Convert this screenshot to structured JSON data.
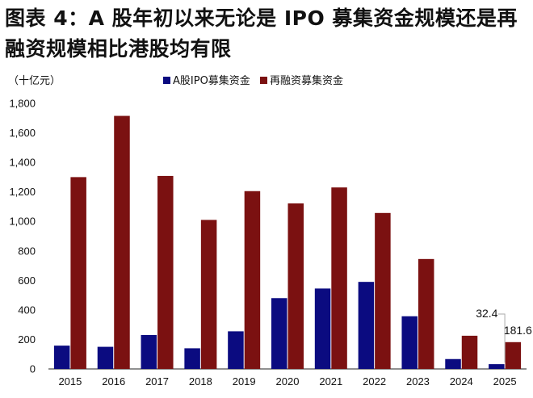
{
  "title": "图表 4：A 股年初以来无论是 IPO 募集资金规模还是再融资规模相比港股均有限",
  "chart_data": {
    "type": "bar",
    "unit_label": "（十亿元）",
    "categories": [
      "2015",
      "2016",
      "2017",
      "2018",
      "2019",
      "2020",
      "2021",
      "2022",
      "2023",
      "2024",
      "2025"
    ],
    "series": [
      {
        "name": "A股IPO募集资金",
        "color": "#0b0b80",
        "values": [
          158,
          150,
          230,
          140,
          255,
          480,
          545,
          590,
          357,
          67,
          32.4
        ]
      },
      {
        "name": "再融资募集资金",
        "color": "#7b1111",
        "values": [
          1300,
          1715,
          1308,
          1010,
          1205,
          1122,
          1230,
          1057,
          745,
          225,
          181.6
        ]
      }
    ],
    "ylim": [
      0,
      1800
    ],
    "yticks": [
      0,
      200,
      400,
      600,
      800,
      1000,
      1200,
      1400,
      1600,
      1800
    ],
    "ytick_labels": [
      "0",
      "200",
      "400",
      "600",
      "800",
      "1,000",
      "1,200",
      "1,400",
      "1,600",
      "1,800"
    ],
    "annotations": [
      {
        "text": "32.4",
        "category": "2025",
        "series": 0
      },
      {
        "text": "181.6",
        "category": "2025",
        "series": 1
      }
    ],
    "legend_position": "top",
    "grid": false
  }
}
